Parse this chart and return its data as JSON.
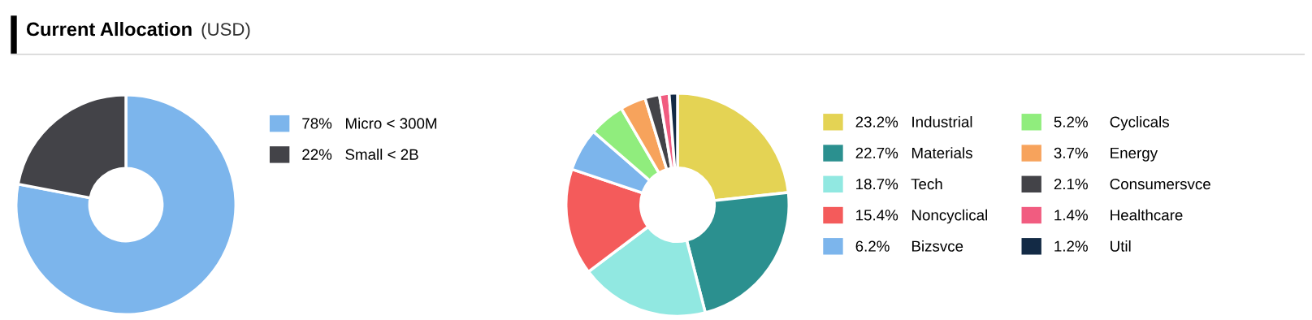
{
  "chart_data": [
    {
      "type": "donut",
      "title": "Current Allocation",
      "subtitle": "(USD)",
      "categories": [
        "Micro < 300M",
        "Small < 2B"
      ],
      "values": [
        78,
        22
      ],
      "value_labels": [
        "78%",
        "22%"
      ],
      "colors": [
        "#7cb5ec",
        "#434348"
      ],
      "legend": "right"
    },
    {
      "type": "donut",
      "categories": [
        "Industrial",
        "Materials",
        "Tech",
        "Noncyclical",
        "Bizsvce",
        "Cyclicals",
        "Energy",
        "Consumersvce",
        "Healthcare",
        "Util"
      ],
      "values": [
        23.2,
        22.7,
        18.7,
        15.4,
        6.2,
        5.2,
        3.7,
        2.1,
        1.4,
        1.2
      ],
      "value_labels": [
        "23.2%",
        "22.7%",
        "18.7%",
        "15.4%",
        "6.2%",
        "5.2%",
        "3.7%",
        "2.1%",
        "1.4%",
        "1.2%"
      ],
      "colors": [
        "#e4d354",
        "#2b908f",
        "#91e8e1",
        "#f45b5b",
        "#7cb5ec",
        "#90ed7d",
        "#f7a35c",
        "#434348",
        "#f15c80",
        "#132a45"
      ],
      "legend": "right"
    }
  ]
}
